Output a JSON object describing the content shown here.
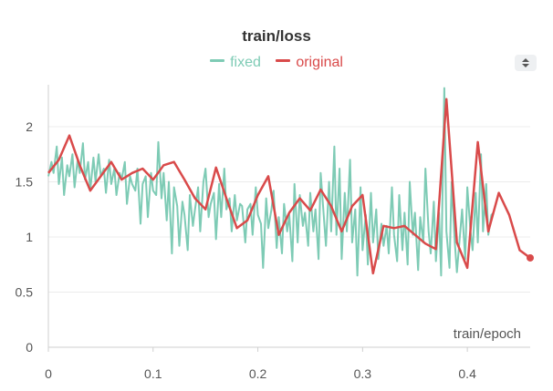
{
  "chart_data": {
    "type": "line",
    "title": "train/loss",
    "xlabel": "train/epoch",
    "ylabel": "",
    "xlim": [
      0,
      0.46
    ],
    "ylim": [
      0,
      2.38
    ],
    "xticks": [
      "0",
      "0.1",
      "0.2",
      "0.3",
      "0.4"
    ],
    "xtick_values": [
      0,
      0.1,
      0.2,
      0.3,
      0.4
    ],
    "yticks": [
      "0",
      "0.5",
      "1",
      "1.5",
      "2"
    ],
    "ytick_values": [
      0,
      0.5,
      1,
      1.5,
      2
    ],
    "grid": true,
    "legend_position": "top-center",
    "series": [
      {
        "name": "fixed",
        "color": "#7ecbb5",
        "x": [
          0.0,
          0.003,
          0.005,
          0.008,
          0.01,
          0.013,
          0.015,
          0.018,
          0.02,
          0.023,
          0.025,
          0.028,
          0.03,
          0.033,
          0.035,
          0.038,
          0.04,
          0.043,
          0.045,
          0.048,
          0.05,
          0.053,
          0.055,
          0.058,
          0.06,
          0.063,
          0.065,
          0.068,
          0.07,
          0.073,
          0.075,
          0.078,
          0.08,
          0.083,
          0.085,
          0.088,
          0.09,
          0.093,
          0.095,
          0.098,
          0.1,
          0.103,
          0.105,
          0.108,
          0.11,
          0.113,
          0.115,
          0.118,
          0.12,
          0.123,
          0.125,
          0.128,
          0.13,
          0.133,
          0.135,
          0.138,
          0.14,
          0.143,
          0.145,
          0.148,
          0.15,
          0.153,
          0.155,
          0.158,
          0.16,
          0.163,
          0.165,
          0.168,
          0.17,
          0.173,
          0.175,
          0.178,
          0.18,
          0.183,
          0.185,
          0.188,
          0.19,
          0.193,
          0.195,
          0.198,
          0.2,
          0.203,
          0.205,
          0.208,
          0.21,
          0.213,
          0.215,
          0.218,
          0.22,
          0.223,
          0.225,
          0.228,
          0.23,
          0.233,
          0.235,
          0.238,
          0.24,
          0.243,
          0.245,
          0.248,
          0.25,
          0.253,
          0.255,
          0.258,
          0.26,
          0.263,
          0.265,
          0.268,
          0.27,
          0.273,
          0.275,
          0.278,
          0.28,
          0.283,
          0.285,
          0.288,
          0.29,
          0.293,
          0.295,
          0.298,
          0.3,
          0.303,
          0.305,
          0.308,
          0.31,
          0.313,
          0.315,
          0.318,
          0.32,
          0.323,
          0.325,
          0.328,
          0.33,
          0.333,
          0.335,
          0.338,
          0.34,
          0.343,
          0.345,
          0.348,
          0.35,
          0.353,
          0.355,
          0.358,
          0.36,
          0.363,
          0.365,
          0.368,
          0.37,
          0.373,
          0.375,
          0.378,
          0.38,
          0.383,
          0.385,
          0.388,
          0.39,
          0.393,
          0.395,
          0.398,
          0.4,
          0.403,
          0.405,
          0.408,
          0.41,
          0.413,
          0.415,
          0.418,
          0.42,
          0.423,
          0.425
        ],
        "values": [
          1.55,
          1.68,
          1.58,
          1.82,
          1.48,
          1.72,
          1.38,
          1.65,
          1.55,
          1.75,
          1.45,
          1.7,
          1.58,
          1.85,
          1.52,
          1.68,
          1.42,
          1.72,
          1.5,
          1.75,
          1.55,
          1.62,
          1.4,
          1.7,
          1.48,
          1.62,
          1.38,
          1.58,
          1.52,
          1.68,
          1.3,
          1.55,
          1.48,
          1.42,
          1.62,
          1.12,
          1.48,
          1.55,
          1.18,
          1.58,
          1.42,
          1.38,
          1.86,
          1.35,
          1.58,
          1.15,
          1.5,
          0.85,
          1.45,
          1.28,
          0.92,
          1.32,
          1.2,
          0.88,
          1.38,
          1.1,
          1.25,
          1.45,
          1.05,
          1.5,
          1.62,
          1.18,
          1.3,
          1.4,
          0.98,
          1.48,
          1.18,
          1.62,
          1.25,
          1.35,
          1.05,
          1.38,
          1.15,
          1.3,
          1.28,
          0.95,
          1.25,
          1.3,
          1.02,
          1.45,
          1.2,
          1.12,
          0.72,
          1.35,
          1.08,
          1.25,
          1.42,
          0.9,
          1.18,
          0.85,
          1.3,
          1.05,
          1.2,
          0.78,
          1.48,
          0.95,
          1.38,
          1.1,
          1.22,
          0.92,
          1.4,
          1.05,
          1.25,
          0.8,
          1.58,
          1.18,
          0.92,
          1.5,
          1.05,
          1.82,
          1.02,
          1.62,
          0.8,
          1.4,
          1.05,
          1.7,
          0.95,
          1.25,
          0.65,
          1.45,
          0.88,
          1.2,
          0.75,
          1.4,
          0.95,
          1.25,
          0.8,
          1.12,
          0.92,
          1.1,
          0.85,
          1.45,
          1.02,
          0.78,
          1.38,
          0.88,
          1.22,
          0.75,
          1.5,
          1.02,
          1.22,
          0.7,
          1.18,
          0.95,
          1.62,
          1.05,
          0.85,
          1.32,
          0.78,
          1.22,
          0.65,
          2.35,
          1.05,
          0.72,
          1.5,
          0.95,
          0.68,
          1.02,
          1.25,
          0.8,
          1.45,
          1.05,
          0.88,
          1.4,
          0.95,
          1.75,
          1.05,
          1.48,
          1.02,
          1.2,
          1.22
        ]
      },
      {
        "name": "original",
        "color": "#d94a4a",
        "x": [
          0.0,
          0.01,
          0.02,
          0.03,
          0.04,
          0.05,
          0.06,
          0.07,
          0.08,
          0.09,
          0.1,
          0.11,
          0.12,
          0.13,
          0.14,
          0.15,
          0.16,
          0.17,
          0.18,
          0.19,
          0.2,
          0.21,
          0.22,
          0.23,
          0.24,
          0.25,
          0.26,
          0.27,
          0.28,
          0.29,
          0.3,
          0.31,
          0.32,
          0.33,
          0.34,
          0.35,
          0.36,
          0.37,
          0.38,
          0.39,
          0.4,
          0.41,
          0.42,
          0.43,
          0.44,
          0.45,
          0.46
        ],
        "values": [
          1.58,
          1.7,
          1.92,
          1.65,
          1.42,
          1.55,
          1.68,
          1.52,
          1.58,
          1.62,
          1.52,
          1.65,
          1.68,
          1.52,
          1.35,
          1.25,
          1.63,
          1.35,
          1.08,
          1.15,
          1.38,
          1.55,
          1.02,
          1.22,
          1.35,
          1.24,
          1.43,
          1.28,
          1.05,
          1.28,
          1.38,
          0.67,
          1.1,
          1.08,
          1.1,
          1.02,
          0.94,
          0.89,
          2.25,
          0.95,
          0.72,
          1.86,
          1.05,
          1.4,
          1.2,
          0.88,
          0.81
        ]
      }
    ]
  },
  "ui": {
    "menu_icon": "sort-arrows-icon"
  }
}
